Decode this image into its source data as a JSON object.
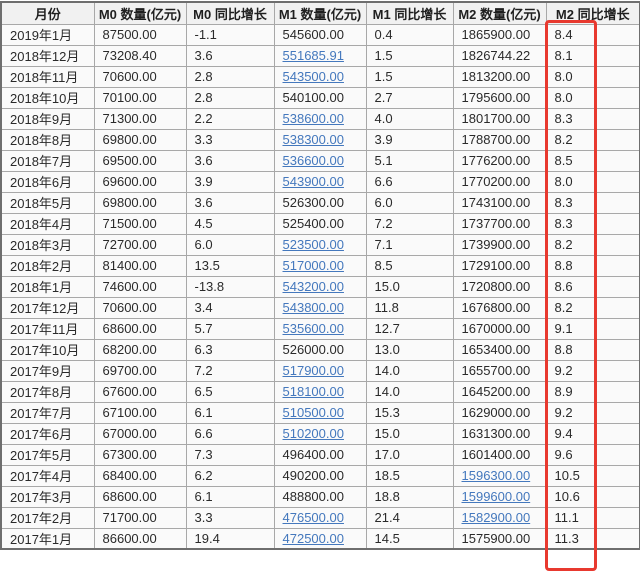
{
  "colors": {
    "accent_red": "#e8392f",
    "link_blue": "#4478bd",
    "header_bg": "#f1f1f1",
    "row_bg": "#fafafa",
    "grid_line": "#a8a8a8"
  },
  "highlight": {
    "target_column": "M2 同比增长"
  },
  "chart_data": {
    "type": "table",
    "title": "",
    "columns": [
      "月份",
      "M0 数量(亿元)",
      "M0 同比增长",
      "M1 数量(亿元)",
      "M1 同比增长",
      "M2 数量(亿元)",
      "M2 同比增长"
    ],
    "rows": [
      {
        "month": "2019年1月",
        "m0": "87500.00",
        "m0_growth": "-1.1",
        "m1": "545600.00",
        "m1_link": false,
        "m1_growth": "0.4",
        "m2": "1865900.00",
        "m2_link": false,
        "m2_growth": "8.4"
      },
      {
        "month": "2018年12月",
        "m0": "73208.40",
        "m0_growth": "3.6",
        "m1": "551685.91",
        "m1_link": true,
        "m1_growth": "1.5",
        "m2": "1826744.22",
        "m2_link": false,
        "m2_growth": "8.1"
      },
      {
        "month": "2018年11月",
        "m0": "70600.00",
        "m0_growth": "2.8",
        "m1": "543500.00",
        "m1_link": true,
        "m1_growth": "1.5",
        "m2": "1813200.00",
        "m2_link": false,
        "m2_growth": "8.0"
      },
      {
        "month": "2018年10月",
        "m0": "70100.00",
        "m0_growth": "2.8",
        "m1": "540100.00",
        "m1_link": false,
        "m1_growth": "2.7",
        "m2": "1795600.00",
        "m2_link": false,
        "m2_growth": "8.0"
      },
      {
        "month": "2018年9月",
        "m0": "71300.00",
        "m0_growth": "2.2",
        "m1": "538600.00",
        "m1_link": true,
        "m1_growth": "4.0",
        "m2": "1801700.00",
        "m2_link": false,
        "m2_growth": "8.3"
      },
      {
        "month": "2018年8月",
        "m0": "69800.00",
        "m0_growth": "3.3",
        "m1": "538300.00",
        "m1_link": true,
        "m1_growth": "3.9",
        "m2": "1788700.00",
        "m2_link": false,
        "m2_growth": "8.2"
      },
      {
        "month": "2018年7月",
        "m0": "69500.00",
        "m0_growth": "3.6",
        "m1": "536600.00",
        "m1_link": true,
        "m1_growth": "5.1",
        "m2": "1776200.00",
        "m2_link": false,
        "m2_growth": "8.5"
      },
      {
        "month": "2018年6月",
        "m0": "69600.00",
        "m0_growth": "3.9",
        "m1": "543900.00",
        "m1_link": true,
        "m1_growth": "6.6",
        "m2": "1770200.00",
        "m2_link": false,
        "m2_growth": "8.0"
      },
      {
        "month": "2018年5月",
        "m0": "69800.00",
        "m0_growth": "3.6",
        "m1": "526300.00",
        "m1_link": false,
        "m1_growth": "6.0",
        "m2": "1743100.00",
        "m2_link": false,
        "m2_growth": "8.3"
      },
      {
        "month": "2018年4月",
        "m0": "71500.00",
        "m0_growth": "4.5",
        "m1": "525400.00",
        "m1_link": false,
        "m1_growth": "7.2",
        "m2": "1737700.00",
        "m2_link": false,
        "m2_growth": "8.3"
      },
      {
        "month": "2018年3月",
        "m0": "72700.00",
        "m0_growth": "6.0",
        "m1": "523500.00",
        "m1_link": true,
        "m1_growth": "7.1",
        "m2": "1739900.00",
        "m2_link": false,
        "m2_growth": "8.2"
      },
      {
        "month": "2018年2月",
        "m0": "81400.00",
        "m0_growth": "13.5",
        "m1": "517000.00",
        "m1_link": true,
        "m1_growth": "8.5",
        "m2": "1729100.00",
        "m2_link": false,
        "m2_growth": "8.8"
      },
      {
        "month": "2018年1月",
        "m0": "74600.00",
        "m0_growth": "-13.8",
        "m1": "543200.00",
        "m1_link": true,
        "m1_growth": "15.0",
        "m2": "1720800.00",
        "m2_link": false,
        "m2_growth": "8.6"
      },
      {
        "month": "2017年12月",
        "m0": "70600.00",
        "m0_growth": "3.4",
        "m1": "543800.00",
        "m1_link": true,
        "m1_growth": "11.8",
        "m2": "1676800.00",
        "m2_link": false,
        "m2_growth": "8.2"
      },
      {
        "month": "2017年11月",
        "m0": "68600.00",
        "m0_growth": "5.7",
        "m1": "535600.00",
        "m1_link": true,
        "m1_growth": "12.7",
        "m2": "1670000.00",
        "m2_link": false,
        "m2_growth": "9.1"
      },
      {
        "month": "2017年10月",
        "m0": "68200.00",
        "m0_growth": "6.3",
        "m1": "526000.00",
        "m1_link": false,
        "m1_growth": "13.0",
        "m2": "1653400.00",
        "m2_link": false,
        "m2_growth": "8.8"
      },
      {
        "month": "2017年9月",
        "m0": "69700.00",
        "m0_growth": "7.2",
        "m1": "517900.00",
        "m1_link": true,
        "m1_growth": "14.0",
        "m2": "1655700.00",
        "m2_link": false,
        "m2_growth": "9.2"
      },
      {
        "month": "2017年8月",
        "m0": "67600.00",
        "m0_growth": "6.5",
        "m1": "518100.00",
        "m1_link": true,
        "m1_growth": "14.0",
        "m2": "1645200.00",
        "m2_link": false,
        "m2_growth": "8.9"
      },
      {
        "month": "2017年7月",
        "m0": "67100.00",
        "m0_growth": "6.1",
        "m1": "510500.00",
        "m1_link": true,
        "m1_growth": "15.3",
        "m2": "1629000.00",
        "m2_link": false,
        "m2_growth": "9.2"
      },
      {
        "month": "2017年6月",
        "m0": "67000.00",
        "m0_growth": "6.6",
        "m1": "510200.00",
        "m1_link": true,
        "m1_growth": "15.0",
        "m2": "1631300.00",
        "m2_link": false,
        "m2_growth": "9.4"
      },
      {
        "month": "2017年5月",
        "m0": "67300.00",
        "m0_growth": "7.3",
        "m1": "496400.00",
        "m1_link": false,
        "m1_growth": "17.0",
        "m2": "1601400.00",
        "m2_link": false,
        "m2_growth": "9.6"
      },
      {
        "month": "2017年4月",
        "m0": "68400.00",
        "m0_growth": "6.2",
        "m1": "490200.00",
        "m1_link": false,
        "m1_growth": "18.5",
        "m2": "1596300.00",
        "m2_link": true,
        "m2_growth": "10.5"
      },
      {
        "month": "2017年3月",
        "m0": "68600.00",
        "m0_growth": "6.1",
        "m1": "488800.00",
        "m1_link": false,
        "m1_growth": "18.8",
        "m2": "1599600.00",
        "m2_link": true,
        "m2_growth": "10.6"
      },
      {
        "month": "2017年2月",
        "m0": "71700.00",
        "m0_growth": "3.3",
        "m1": "476500.00",
        "m1_link": true,
        "m1_growth": "21.4",
        "m2": "1582900.00",
        "m2_link": true,
        "m2_growth": "11.1"
      },
      {
        "month": "2017年1月",
        "m0": "86600.00",
        "m0_growth": "19.4",
        "m1": "472500.00",
        "m1_link": true,
        "m1_growth": "14.5",
        "m2": "1575900.00",
        "m2_link": false,
        "m2_growth": "11.3"
      }
    ]
  }
}
